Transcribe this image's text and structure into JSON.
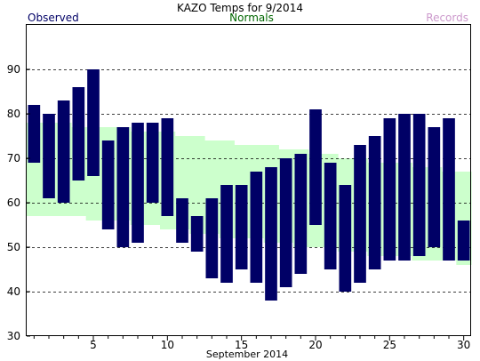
{
  "header": {
    "title": "KAZO Temps for 9/2014",
    "legend_observed": "Observed",
    "legend_normals": "Normals",
    "legend_records": "Records"
  },
  "colors": {
    "observed": "#000066",
    "normals": "#ccffcc",
    "normals_text": "#006600",
    "records_text": "#cc99cc",
    "observed_text": "#000066"
  },
  "chart_data": {
    "type": "bar",
    "title": "KAZO Temps for 9/2014",
    "xlabel": "September 2014",
    "ylabel": "",
    "xlim": [
      1,
      30
    ],
    "ylim": [
      30,
      100
    ],
    "x_ticks": [
      5,
      10,
      15,
      20,
      25,
      30
    ],
    "y_ticks": [
      30,
      40,
      50,
      60,
      70,
      80,
      90
    ],
    "grid": "horizontal-dashed",
    "series": [
      {
        "name": "Observed",
        "type": "range-bar",
        "days": [
          1,
          2,
          3,
          4,
          5,
          6,
          7,
          8,
          9,
          10,
          11,
          12,
          13,
          14,
          15,
          16,
          17,
          18,
          19,
          20,
          21,
          22,
          23,
          24,
          25,
          26,
          27,
          28,
          29,
          30
        ],
        "high": [
          82,
          80,
          83,
          86,
          90,
          74,
          77,
          78,
          78,
          79,
          61,
          57,
          61,
          64,
          64,
          67,
          68,
          70,
          71,
          81,
          69,
          64,
          73,
          75,
          79,
          80,
          80,
          77,
          79,
          56
        ],
        "low": [
          69,
          61,
          60,
          65,
          66,
          54,
          50,
          51,
          60,
          57,
          51,
          49,
          43,
          42,
          45,
          42,
          38,
          41,
          44,
          55,
          45,
          40,
          42,
          45,
          47,
          47,
          48,
          50,
          47,
          47
        ]
      },
      {
        "name": "Normals",
        "type": "range-area",
        "days": [
          1,
          2,
          3,
          4,
          5,
          6,
          7,
          8,
          9,
          10,
          11,
          12,
          13,
          14,
          15,
          16,
          17,
          18,
          19,
          20,
          21,
          22,
          23,
          24,
          25,
          26,
          27,
          28,
          29,
          30
        ],
        "high": [
          78,
          78,
          78,
          77,
          77,
          77,
          77,
          76,
          76,
          76,
          75,
          75,
          74,
          74,
          73,
          73,
          73,
          72,
          72,
          71,
          71,
          70,
          70,
          69,
          69,
          69,
          68,
          68,
          67,
          67
        ],
        "low": [
          57,
          57,
          57,
          57,
          56,
          56,
          56,
          55,
          55,
          54,
          54,
          53,
          53,
          52,
          52,
          52,
          51,
          51,
          50,
          50,
          50,
          49,
          49,
          48,
          48,
          48,
          47,
          47,
          47,
          46
        ]
      }
    ]
  }
}
